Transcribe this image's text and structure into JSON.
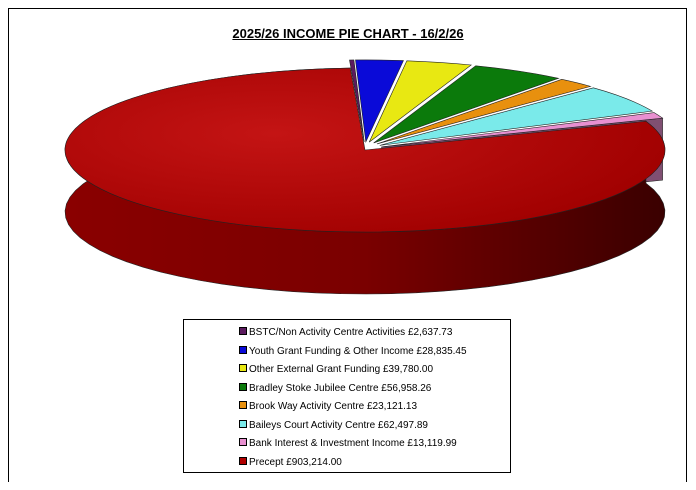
{
  "chart_data": {
    "type": "pie",
    "title": "2025/26 INCOME PIE CHART - 16/2/26",
    "slices": [
      {
        "label": "BSTC/Non Activity Centre Activities",
        "value_text": "£2,637.73",
        "value": 2637.73,
        "color": "#5b1a5e"
      },
      {
        "label": "Youth Grant Funding & Other Income",
        "value_text": "£28,835.45",
        "value": 28835.45,
        "color": "#0a0ad8"
      },
      {
        "label": "Other External Grant Funding",
        "value_text": "£39,780.00",
        "value": 39780.0,
        "color": "#e8e812"
      },
      {
        "label": "Bradley Stoke Jubilee Centre",
        "value_text": "£56,958.26",
        "value": 56958.26,
        "color": "#0b7a0b"
      },
      {
        "label": "Brook Way Activity Centre",
        "value_text": "£23,121.13",
        "value": 23121.13,
        "color": "#e8900e"
      },
      {
        "label": "Baileys Court Activity Centre",
        "value_text": "£62,497.89",
        "value": 62497.89,
        "color": "#7aeaea"
      },
      {
        "label": "Bank Interest & Investment Income",
        "value_text": "£13,119.99",
        "value": 13119.99,
        "color": "#e890d0"
      },
      {
        "label": "Precept",
        "value_text": "£903,214.00",
        "value": 903214.0,
        "color": "#b00000"
      }
    ],
    "legend_position": "bottom"
  }
}
